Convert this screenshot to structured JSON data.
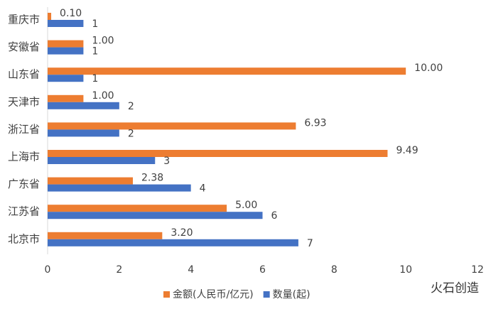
{
  "chart_data": {
    "type": "bar",
    "orientation": "horizontal",
    "categories": [
      "重庆市",
      "安徽省",
      "山东省",
      "天津市",
      "浙江省",
      "上海市",
      "广东省",
      "江苏省",
      "北京市"
    ],
    "series": [
      {
        "name": "金额(人民币/亿元)",
        "color": "#ed7d31",
        "values": [
          0.1,
          1,
          10,
          1,
          6.93,
          9.49,
          2.38,
          5,
          3.2
        ],
        "value_labels": [
          "0.10",
          "1.00",
          "10.00",
          "1.00",
          "6.93",
          "9.49",
          "2.38",
          "5.00",
          "3.20"
        ]
      },
      {
        "name": "数量(起)",
        "color": "#4472c4",
        "values": [
          1,
          1,
          1,
          2,
          2,
          3,
          4,
          6,
          7
        ]
      }
    ],
    "xlim": [
      0,
      12
    ],
    "xticks": [
      0,
      2,
      4,
      6,
      8,
      10,
      12
    ],
    "grid": false,
    "legend": "bottom",
    "logo": "火石创造"
  }
}
